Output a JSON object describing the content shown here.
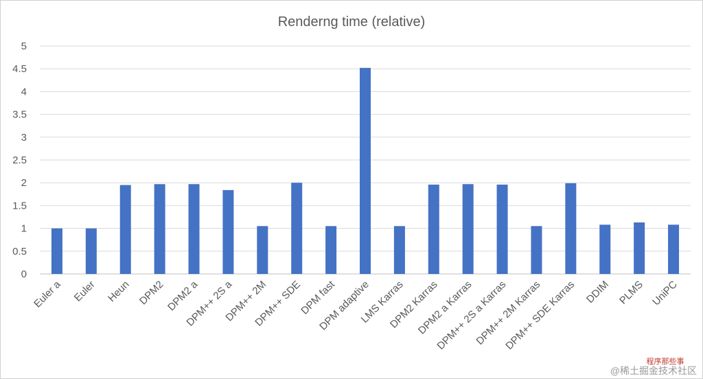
{
  "chart_data": {
    "type": "bar",
    "title": "Renderng time (relative)",
    "xlabel": "",
    "ylabel": "",
    "ylim": [
      0,
      5
    ],
    "yticks": [
      "0",
      "0.5",
      "1",
      "1.5",
      "2",
      "2.5",
      "3",
      "3.5",
      "4",
      "4.5",
      "5"
    ],
    "grid": true,
    "legend": "none",
    "categories": [
      "Euler a",
      "Euler",
      "Heun",
      "DPM2",
      "DPM2 a",
      "DPM++ 2S a",
      "DPM++ 2M",
      "DPM++ SDE",
      "DPM fast",
      "DPM adaptive",
      "LMS Karras",
      "DPM2 Karras",
      "DPM2 a Karras",
      "DPM++ 2S a Karras",
      "DPM++ 2M Karras",
      "DPM++ SDE Karras",
      "DDIM",
      "PLMS",
      "UniPC"
    ],
    "values": [
      1.0,
      1.0,
      1.95,
      1.97,
      1.97,
      1.84,
      1.05,
      2.0,
      1.05,
      4.52,
      1.05,
      1.96,
      1.97,
      1.96,
      1.05,
      1.99,
      1.08,
      1.13,
      1.08
    ],
    "bar_color": "#4472c4"
  },
  "watermark": {
    "line1": "程序那些事",
    "line2": "@稀土掘金技术社区"
  }
}
